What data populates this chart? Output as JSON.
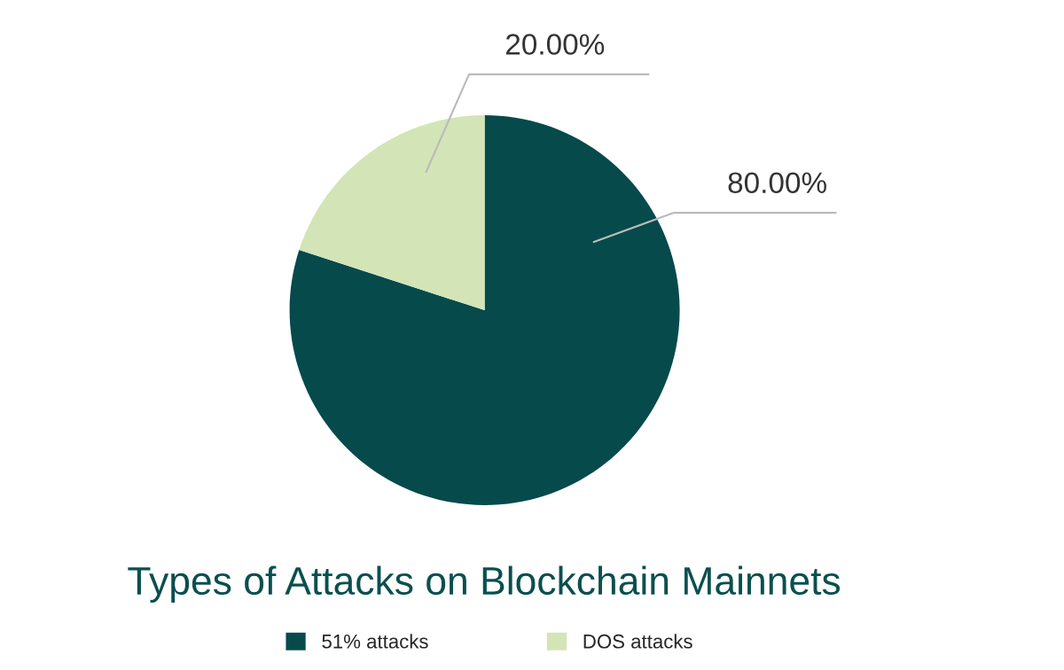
{
  "chart_data": {
    "type": "pie",
    "title": "Types of Attacks on Blockchain Mainnets",
    "categories": [
      "51% attacks",
      "DOS attacks"
    ],
    "values": [
      80,
      20
    ],
    "colors": [
      "#064a4b",
      "#d3e4b6"
    ],
    "value_labels": [
      "80.00%",
      "20.00%"
    ],
    "legend": "bottom"
  }
}
